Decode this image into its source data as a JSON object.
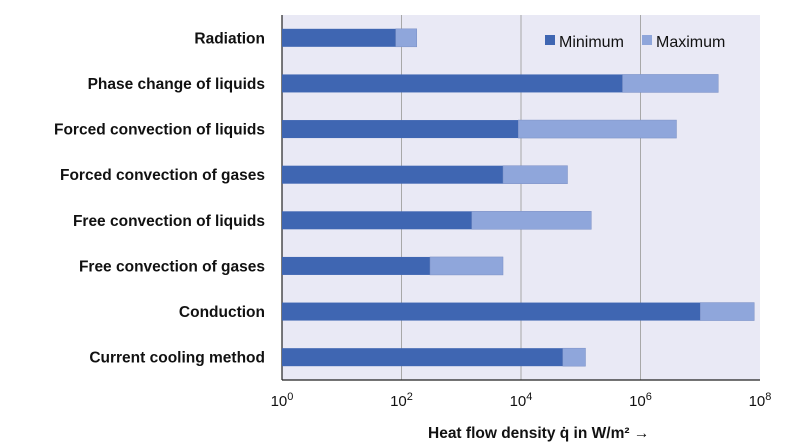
{
  "chart_data": {
    "type": "bar",
    "orientation": "horizontal",
    "stacked": true,
    "x_scale": "log",
    "xlim": [
      1,
      100000000
    ],
    "x_ticks": [
      {
        "base": "10",
        "exp": "0"
      },
      {
        "base": "10",
        "exp": "2"
      },
      {
        "base": "10",
        "exp": "4"
      },
      {
        "base": "10",
        "exp": "6"
      },
      {
        "base": "10",
        "exp": "8"
      }
    ],
    "xlabel": "Heat flow density q̇ in W/m²  →",
    "ylabel": "",
    "title": "",
    "grid": "vertical",
    "legend_position": "top-right",
    "categories": [
      "Radiation",
      "Phase change of liquids",
      "Forced convection of liquids",
      "Forced convection of gases",
      "Free convection of liquids",
      "Free convection of gases",
      "Conduction",
      "Current cooling method"
    ],
    "series": [
      {
        "name": "Minimum",
        "color": "#3F66B2",
        "values": [
          80,
          500000,
          9000,
          5000,
          1500,
          300,
          10000000,
          50000
        ]
      },
      {
        "name": "Maximum",
        "color": "#8FA6DB",
        "values": [
          180,
          20000000,
          4000000,
          60000,
          150000,
          5000,
          80000000,
          120000
        ]
      }
    ],
    "colors": {
      "plot_background": "#E9E9F5",
      "grid": "#A8A8A8"
    }
  }
}
